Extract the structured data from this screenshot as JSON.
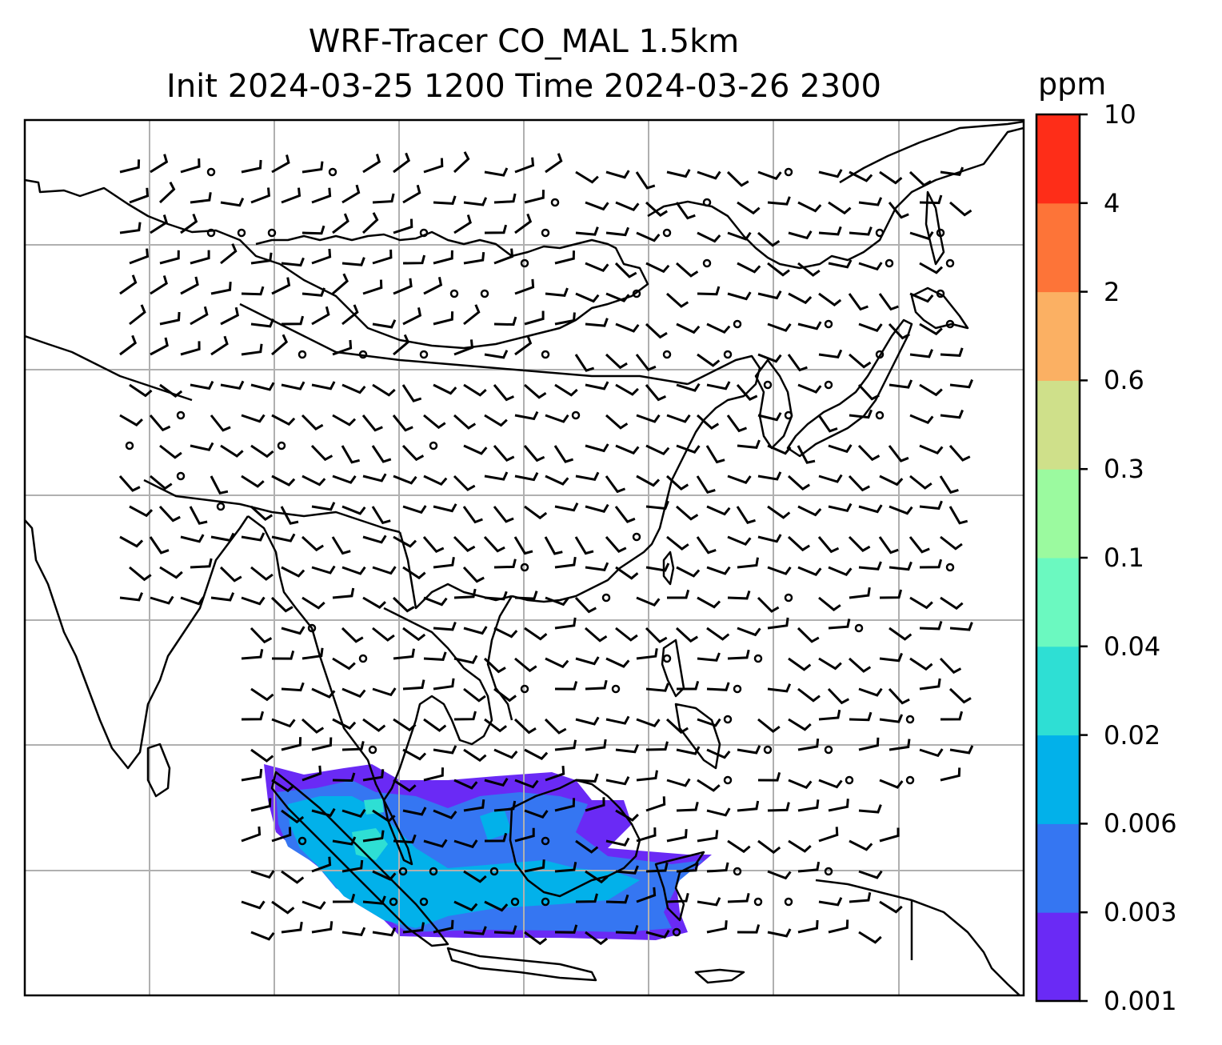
{
  "title": {
    "line1": "WRF-Tracer CO_MAL 1.5km",
    "line2": "Init 2024-03-25 1200 Time 2024-03-26 2300"
  },
  "colorbar": {
    "unit": "ppm",
    "levels": [
      "0.001",
      "0.003",
      "0.006",
      "0.02",
      "0.04",
      "0.1",
      "0.3",
      "0.6",
      "2",
      "4",
      "10"
    ],
    "colors": [
      "#6a2af5",
      "#3576f2",
      "#02b1ea",
      "#2edfd4",
      "#6bf9c0",
      "#9bfa9f",
      "#cfe08a",
      "#fbb063",
      "#fd7438",
      "#fe2d18"
    ]
  },
  "map": {
    "region": "East / Southeast Asia",
    "gridlines": true,
    "features": [
      "coastlines",
      "country borders",
      "wind barbs",
      "tracer concentration shading"
    ],
    "plume_region": "Maritime Continent (Sumatra – Java – Borneo)"
  }
}
